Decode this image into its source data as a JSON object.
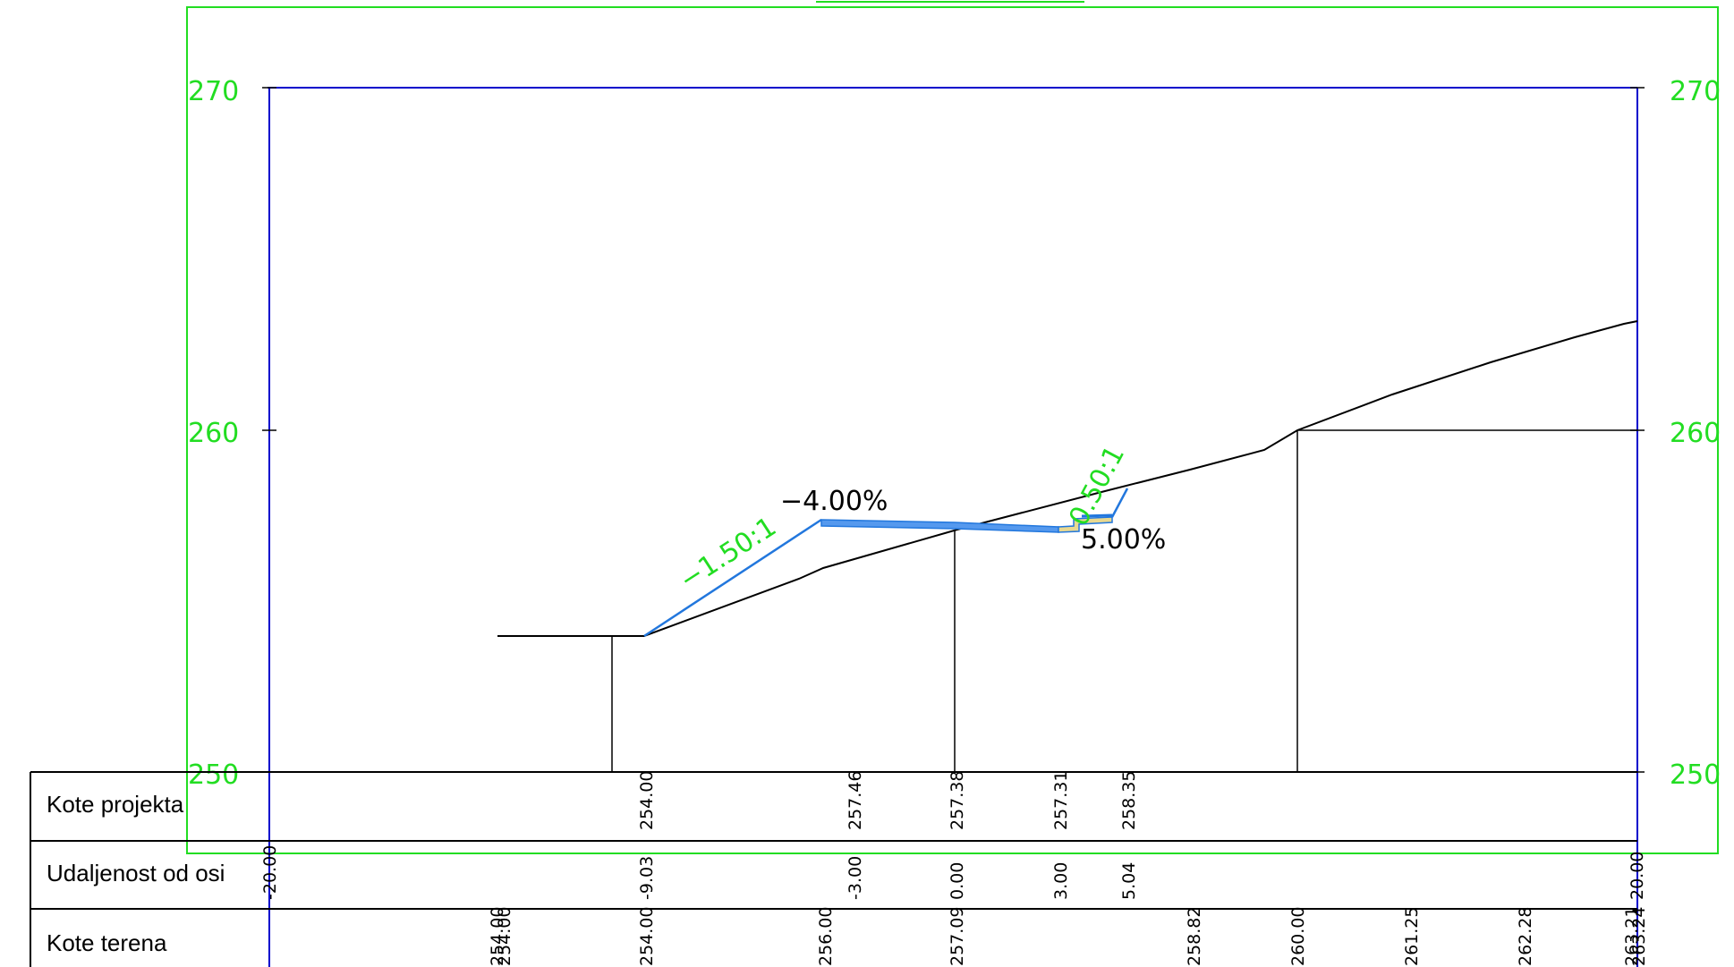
{
  "elevation_ticks": [
    "270",
    "260",
    "250"
  ],
  "slope_labels": {
    "left_slope": "−1.50:1",
    "right_slope": "0.50:1",
    "crossfall_left": "−4.00%",
    "crossfall_right": "5.00%"
  },
  "table": {
    "rows": [
      {
        "label": "Kote projekta"
      },
      {
        "label": "Udaljenost od osi"
      },
      {
        "label": "Kote terena"
      }
    ],
    "kote_projekta": [
      "254.00",
      "257.46",
      "257.38",
      "257.31",
      "258.35"
    ],
    "udaljenost_od_osi": [
      "-20.00",
      "-9.03",
      "-3.00",
      "0.00",
      "3.00",
      "5.04",
      "20.00"
    ],
    "kote_terena": [
      "254.00",
      "254.00",
      "254.00",
      "256.00",
      "257.09",
      "258.82",
      "260.00",
      "261.25",
      "262.28",
      "263.21",
      "263.24"
    ]
  },
  "colors": {
    "frame_green": "#22dd22",
    "axis_blue": "#0000cc",
    "road_blue": "#2277dd",
    "road_fill": "#5599ee",
    "shoulder_yellow": "#e8d890",
    "terrain": "#000000"
  }
}
